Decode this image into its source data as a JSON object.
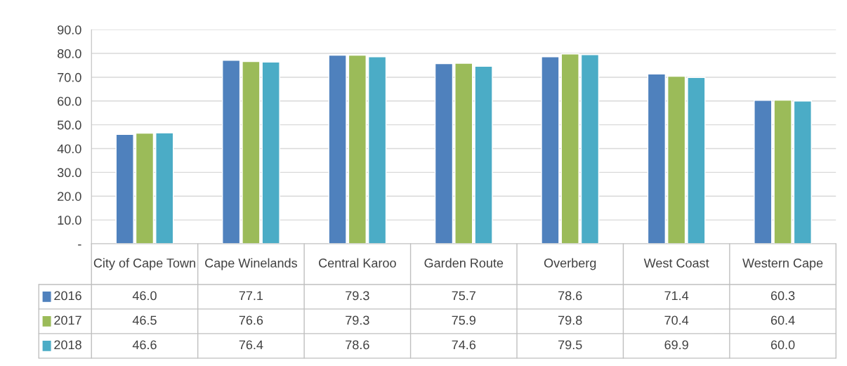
{
  "chart_data": {
    "type": "bar",
    "categories": [
      "City of Cape Town",
      "Cape Winelands",
      "Central Karoo",
      "Garden Route",
      "Overberg",
      "West Coast",
      "Western Cape"
    ],
    "series": [
      {
        "name": "2016",
        "color": "#4f81bd",
        "values": [
          46.0,
          77.1,
          79.3,
          75.7,
          78.6,
          71.4,
          60.3
        ],
        "value_labels": [
          "46.0",
          "77.1",
          "79.3",
          "75.7",
          "78.6",
          "71.4",
          "60.3"
        ]
      },
      {
        "name": "2017",
        "color": "#9bbb59",
        "values": [
          46.5,
          76.6,
          79.3,
          75.9,
          79.8,
          70.4,
          60.4
        ],
        "value_labels": [
          "46.5",
          "76.6",
          "79.3",
          "75.9",
          "79.8",
          "70.4",
          "60.4"
        ]
      },
      {
        "name": "2018",
        "color": "#4bacc6",
        "values": [
          46.6,
          76.4,
          78.6,
          74.6,
          79.5,
          69.9,
          60.0
        ],
        "value_labels": [
          "46.6",
          "76.4",
          "78.6",
          "74.6",
          "79.5",
          "69.9",
          "60.0"
        ]
      }
    ],
    "ylim": [
      0,
      90
    ],
    "yticks": [
      {
        "value": 0,
        "label": "-"
      },
      {
        "value": 10,
        "label": "10.0"
      },
      {
        "value": 20,
        "label": "20.0"
      },
      {
        "value": 30,
        "label": "30.0"
      },
      {
        "value": 40,
        "label": "40.0"
      },
      {
        "value": 50,
        "label": "50.0"
      },
      {
        "value": 60,
        "label": "60.0"
      },
      {
        "value": 70,
        "label": "70.0"
      },
      {
        "value": 80,
        "label": "80.0"
      },
      {
        "value": 90,
        "label": "90.0"
      }
    ],
    "grid": "y",
    "legend": "bottom left"
  }
}
